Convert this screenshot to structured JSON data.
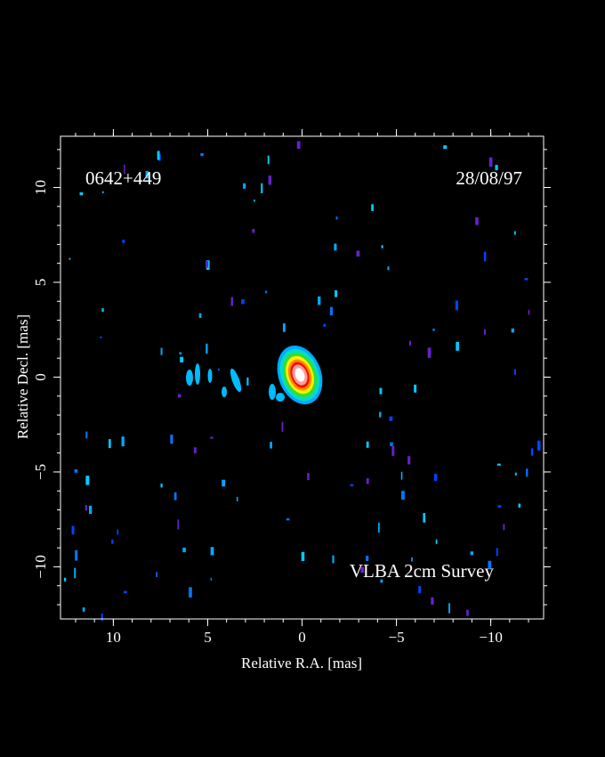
{
  "chart_data": {
    "type": "image",
    "xlabel": "Relative R.A. [mas]",
    "ylabel": "Relative Decl. [mas]",
    "annotations": [
      "0642+449",
      "28/08/97",
      "VLBA 2cm Survey"
    ],
    "xlim": [
      12.8,
      -12.8
    ],
    "ylim": [
      -12.75,
      12.7
    ],
    "xticks": [
      10,
      5,
      0,
      {
        "value": -5,
        "label": "−5"
      },
      {
        "value": -10,
        "label": "−10"
      }
    ],
    "yticks": [
      {
        "value": -10,
        "label": "−10"
      },
      {
        "value": -5,
        "label": "−5"
      },
      0,
      5,
      10
    ],
    "xminorticks": [
      12,
      11,
      10,
      9,
      8,
      7,
      6,
      5,
      4,
      3,
      2,
      1,
      0,
      -1,
      -2,
      -3,
      -4,
      -5,
      -6,
      -7,
      -8,
      -9,
      -10,
      -11,
      -12
    ],
    "yminorticks": [
      -12,
      -11,
      -10,
      -9,
      -8,
      -7,
      -6,
      -5,
      -4,
      -3,
      -2,
      -1,
      0,
      1,
      2,
      3,
      4,
      5,
      6,
      7,
      8,
      9,
      10,
      11,
      12
    ],
    "axis_color": "#ffffff"
  }
}
